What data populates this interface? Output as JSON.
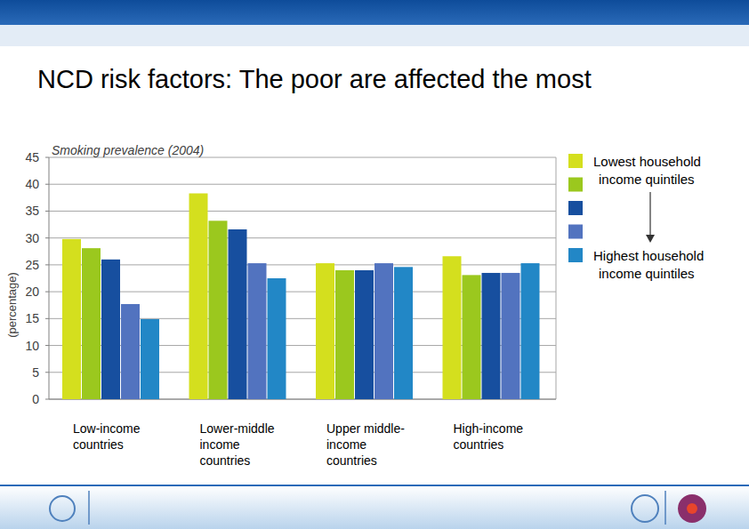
{
  "chart_data": {
    "type": "bar",
    "title": "NCD risk factors: The poor are affected the most",
    "subtitle": "Smoking prevalence (2004)",
    "y_label": "(percentage)",
    "categories": [
      "Low-income countries",
      "Lower-middle income countries",
      "Upper middle-income countries",
      "High-income countries"
    ],
    "series": [
      {
        "name": "Lowest household income quintiles",
        "color": "#d4df1e",
        "values": [
          29.8,
          38.3,
          25.3,
          26.6
        ]
      },
      {
        "name": null,
        "color": "#9bc81e",
        "values": [
          28.1,
          33.2,
          24.0,
          23.1
        ]
      },
      {
        "name": null,
        "color": "#174f9f",
        "values": [
          26.0,
          31.6,
          24.0,
          23.5
        ]
      },
      {
        "name": null,
        "color": "#5273bf",
        "values": [
          17.7,
          25.3,
          25.3,
          23.5
        ]
      },
      {
        "name": "Highest household income quintiles",
        "color": "#2287c6",
        "values": [
          14.9,
          22.5,
          24.6,
          25.3
        ]
      }
    ],
    "ylim": [
      0,
      45
    ],
    "yticks": [
      0,
      5,
      10,
      15,
      20,
      25,
      30,
      35,
      40,
      45
    ],
    "grid": true,
    "legend": "right"
  }
}
